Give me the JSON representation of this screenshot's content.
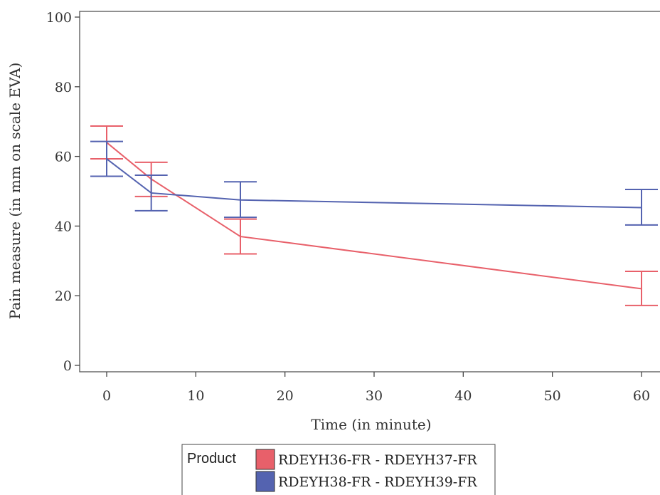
{
  "chart_data": {
    "type": "line",
    "xlabel": "Time (in minute)",
    "ylabel": "Pain measure (in mm on scale EVA)",
    "xlim": [
      -3,
      62
    ],
    "ylim": [
      0,
      100
    ],
    "x_ticks": [
      0,
      10,
      20,
      30,
      40,
      50,
      60
    ],
    "y_ticks": [
      0,
      20,
      40,
      60,
      80,
      100
    ],
    "grid": false,
    "legend_title": "Product",
    "legend_position": "bottom",
    "series": [
      {
        "name": "RDEYH36-FR - RDEYH37-FR",
        "color": "#e8606a",
        "x": [
          0,
          5,
          15,
          60
        ],
        "y": [
          64,
          53.5,
          37,
          22
        ],
        "err_low": [
          59.3,
          48.5,
          32,
          17.2
        ],
        "err_high": [
          68.7,
          58.3,
          42,
          27
        ]
      },
      {
        "name": "RDEYH38-FR - RDEYH39-FR",
        "color": "#5463b0",
        "x": [
          0,
          5,
          15,
          60
        ],
        "y": [
          59.3,
          49.5,
          47.5,
          45.3
        ],
        "err_low": [
          54.3,
          44.4,
          42.5,
          40.3
        ],
        "err_high": [
          64.3,
          54.6,
          52.7,
          50.5
        ]
      }
    ]
  }
}
